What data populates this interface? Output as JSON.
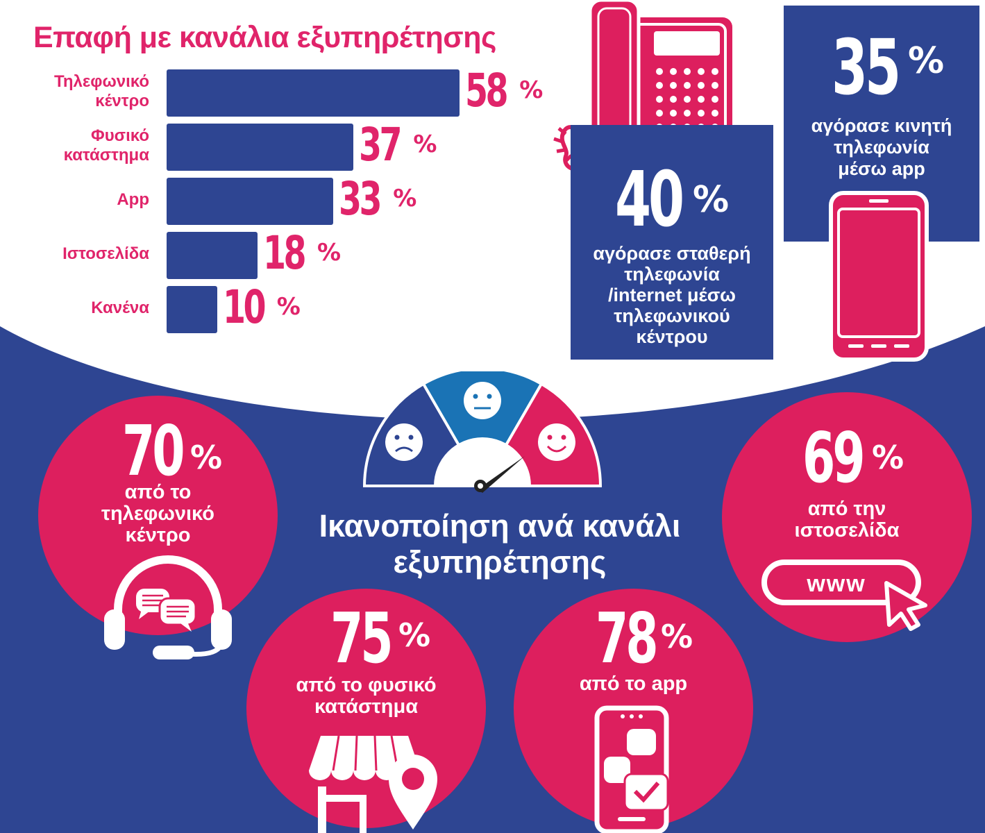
{
  "header": {
    "title": "Επαφή με κανάλια εξυπηρέτησης"
  },
  "chart_data": {
    "type": "bar",
    "title": "Επαφή με κανάλια εξυπηρέτησης",
    "categories": [
      "Τηλεφωνικό κέντρο",
      "Φυσικό κατάστημα",
      "App",
      "Ιστοσελίδα",
      "Κανένα"
    ],
    "category_lines": [
      [
        "Τηλεφωνικό",
        "κέντρο"
      ],
      [
        "Φυσικό",
        "κατάστημα"
      ],
      [
        "App"
      ],
      [
        "Ιστοσελίδα"
      ],
      [
        "Κανένα"
      ]
    ],
    "values": [
      58,
      37,
      33,
      18,
      10
    ],
    "value_labels": [
      "58",
      "37",
      "33",
      "18",
      "10"
    ],
    "unit": "%",
    "orientation": "horizontal",
    "colors": {
      "bar": "#2e4592",
      "label": "#e0246a"
    }
  },
  "purchase": {
    "fixed": {
      "value": "40",
      "unit": "%",
      "lines": [
        "αγόρασε σταθερή",
        "τηλεφωνία",
        "/internet μέσω",
        "τηλεφωνικού",
        "κέντρου"
      ]
    },
    "mobile": {
      "value": "35",
      "unit": "%",
      "lines": [
        "αγόρασε κινητή",
        "τηλεφωνία",
        "μέσω app"
      ]
    }
  },
  "satisfaction": {
    "title_lines": [
      "Ικανοποίηση ανά κανάλι",
      "εξυπηρέτησης"
    ],
    "call_center": {
      "value": "70",
      "unit": "%",
      "lines": [
        "από το",
        "τηλεφωνικό",
        "κέντρο"
      ]
    },
    "store": {
      "value": "75",
      "unit": "%",
      "lines": [
        "από το φυσικό",
        "κατάστημα"
      ]
    },
    "app": {
      "value": "78",
      "unit": "%",
      "lines": [
        "από το app"
      ]
    },
    "website": {
      "value": "69",
      "unit": "%",
      "lines": [
        "από την",
        "ιστοσελίδα"
      ],
      "www": "www"
    }
  },
  "colors": {
    "navy": "#2e4592",
    "pink": "#e0246a",
    "blue": "#1a73b5",
    "white": "#ffffff"
  },
  "icons": [
    "desk-phone-icon",
    "smartphone-icon",
    "satisfaction-gauge-icon",
    "headset-icon",
    "storefront-icon",
    "location-pin-icon",
    "app-phone-icon",
    "www-cursor-icon"
  ]
}
